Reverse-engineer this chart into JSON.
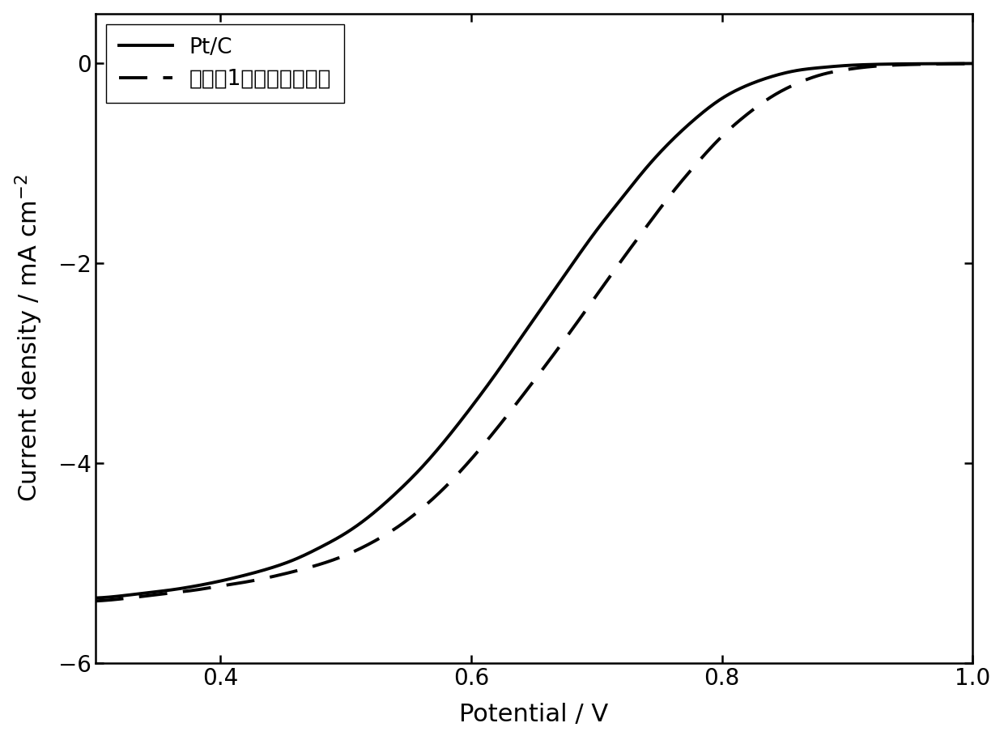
{
  "title": "",
  "xlabel": "Potential / V",
  "xlim": [
    0.3,
    1.0
  ],
  "ylim": [
    -6.0,
    0.5
  ],
  "xticks": [
    0.4,
    0.6,
    0.8,
    1.0
  ],
  "yticks": [
    0,
    -2,
    -4,
    -6
  ],
  "legend_label_ptc": "Pt/C",
  "legend_label_cat": "实施例1中所制备催化刑",
  "background_color": "#ffffff",
  "line_color": "#000000",
  "ptc_curve_x": [
    0.3,
    0.32,
    0.34,
    0.36,
    0.38,
    0.4,
    0.42,
    0.44,
    0.46,
    0.48,
    0.5,
    0.52,
    0.54,
    0.56,
    0.58,
    0.6,
    0.62,
    0.64,
    0.66,
    0.68,
    0.7,
    0.72,
    0.74,
    0.76,
    0.78,
    0.8,
    0.82,
    0.84,
    0.86,
    0.88,
    0.9,
    0.92,
    0.94,
    0.96,
    0.98,
    1.0
  ],
  "ptc_curve_y": [
    -5.35,
    -5.33,
    -5.3,
    -5.27,
    -5.23,
    -5.18,
    -5.12,
    -5.05,
    -4.96,
    -4.84,
    -4.7,
    -4.52,
    -4.3,
    -4.05,
    -3.76,
    -3.44,
    -3.1,
    -2.74,
    -2.38,
    -2.02,
    -1.67,
    -1.35,
    -1.04,
    -0.77,
    -0.54,
    -0.35,
    -0.22,
    -0.13,
    -0.07,
    -0.04,
    -0.02,
    -0.01,
    -0.005,
    -0.003,
    -0.001,
    -0.0005
  ],
  "cat_curve_x": [
    0.3,
    0.32,
    0.34,
    0.36,
    0.38,
    0.4,
    0.42,
    0.44,
    0.46,
    0.48,
    0.5,
    0.52,
    0.54,
    0.56,
    0.58,
    0.6,
    0.62,
    0.64,
    0.66,
    0.68,
    0.7,
    0.72,
    0.74,
    0.76,
    0.78,
    0.8,
    0.82,
    0.84,
    0.86,
    0.88,
    0.9,
    0.92,
    0.94,
    0.96,
    0.98,
    1.0
  ],
  "cat_curve_y": [
    -5.38,
    -5.36,
    -5.33,
    -5.3,
    -5.27,
    -5.23,
    -5.19,
    -5.14,
    -5.08,
    -5.01,
    -4.92,
    -4.8,
    -4.65,
    -4.46,
    -4.23,
    -3.96,
    -3.66,
    -3.34,
    -3.01,
    -2.67,
    -2.32,
    -1.97,
    -1.63,
    -1.3,
    -1.0,
    -0.73,
    -0.51,
    -0.33,
    -0.2,
    -0.11,
    -0.06,
    -0.03,
    -0.015,
    -0.008,
    -0.004,
    -0.002
  ]
}
